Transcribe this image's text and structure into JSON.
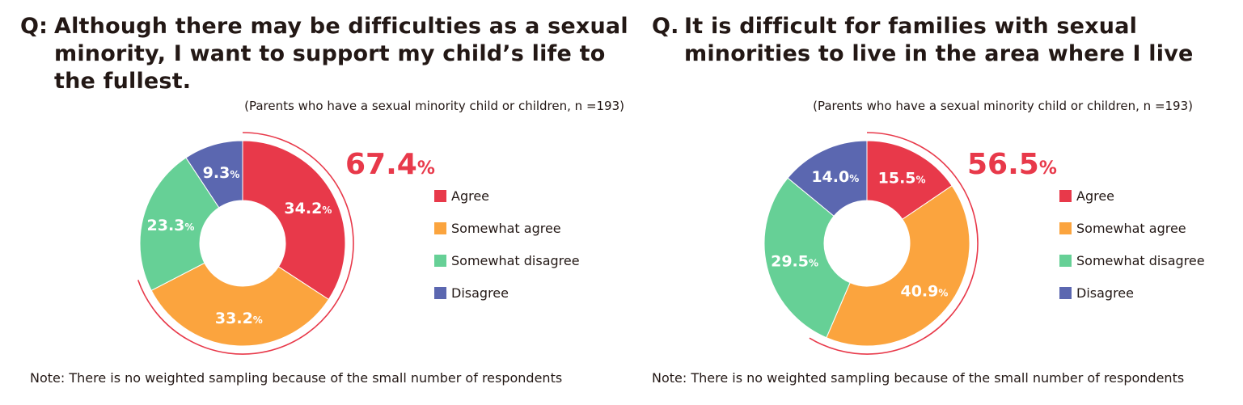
{
  "percent_symbol": "%",
  "legend": [
    "Agree",
    "Somewhat agree",
    "Somewhat disagree",
    "Disagree"
  ],
  "colors": [
    "#e8394a",
    "#fba43e",
    "#66d096",
    "#5b67b0"
  ],
  "panels": [
    {
      "prefix": "Q:",
      "title": "Although there may be difficulties as a sexual minority, I want to support my child’s life to the fullest.",
      "subtitle": "(Parents who have a sexual minority child or children, n =193)",
      "total": "67.4",
      "note": "Note: There is no weighted sampling because of the small number of respondents"
    },
    {
      "prefix": "Q.",
      "title": "It is difficult for families with sexual minorities to live in the area where I live",
      "subtitle": "(Parents who have a sexual minority child or children, n =193)",
      "total": "56.5",
      "note": "Note: There is no weighted sampling because of the small number of respondents"
    }
  ],
  "chart_data": [
    {
      "type": "pie",
      "title": "Although there may be difficulties as a sexual minority, I want to support my child’s life to the fullest.",
      "categories": [
        "Agree",
        "Somewhat agree",
        "Somewhat disagree",
        "Disagree"
      ],
      "values": [
        34.2,
        33.2,
        23.3,
        9.3
      ],
      "labels": [
        "34.2",
        "33.2",
        "23.3",
        "9.3"
      ],
      "highlight_total": 67.4,
      "legend_position": "right"
    },
    {
      "type": "pie",
      "title": "It is difficult for families with sexual minorities to live in the area where I live",
      "categories": [
        "Agree",
        "Somewhat agree",
        "Somewhat disagree",
        "Disagree"
      ],
      "values": [
        15.5,
        40.9,
        29.5,
        14.0
      ],
      "labels": [
        "15.5",
        "40.9",
        "29.5",
        "14.0"
      ],
      "highlight_total": 56.5,
      "legend_position": "right"
    }
  ]
}
